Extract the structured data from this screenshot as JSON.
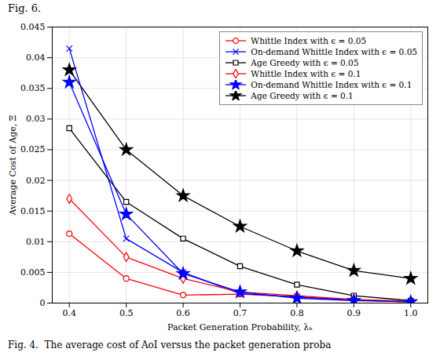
{
  "chart_data": {
    "type": "line",
    "title": "Fig. 6.",
    "caption": "Fig. 4.  The average cost of AoI versus the packet generation proba",
    "xlabel": "Packet Generation Probability, λₕ",
    "ylabel": "Average Cost of Age, Ξ",
    "x": [
      0.4,
      0.5,
      0.6,
      0.7,
      0.8,
      0.9,
      1.0
    ],
    "series": [
      {
        "name": "Whittle Index with ϵ = 0.05",
        "color": "#ff0000",
        "marker": "circle",
        "values": [
          0.0113,
          0.004,
          0.0013,
          0.00145,
          0.001,
          0.0005,
          0.0002
        ]
      },
      {
        "name": "On-demand Whittle Index with ϵ = 0.05",
        "color": "#0000ff",
        "marker": "x",
        "values": [
          0.0415,
          0.0105,
          0.005,
          0.00155,
          0.001,
          0.0005,
          0.0002
        ]
      },
      {
        "name": "Age Greedy with ϵ = 0.05",
        "color": "#000000",
        "marker": "square",
        "values": [
          0.0285,
          0.0165,
          0.0105,
          0.006,
          0.003,
          0.0012,
          0.0004
        ]
      },
      {
        "name": "Whittle Index with ϵ = 0.1",
        "color": "#ff0000",
        "marker": "diamond",
        "values": [
          0.017,
          0.0075,
          0.004,
          0.0018,
          0.0012,
          0.0006,
          0.0003
        ]
      },
      {
        "name": "On-demand Whittle Index with ϵ = 0.1",
        "color": "#0000ff",
        "marker": "star",
        "values": [
          0.036,
          0.0145,
          0.0048,
          0.0018,
          0.0008,
          0.0004,
          0.0002
        ]
      },
      {
        "name": "Age Greedy with ϵ = 0.1",
        "color": "#000000",
        "marker": "star",
        "values": [
          0.038,
          0.025,
          0.0175,
          0.0125,
          0.0085,
          0.0053,
          0.004
        ]
      }
    ],
    "xlim": [
      0.37,
      1.03
    ],
    "ylim": [
      0,
      0.045
    ],
    "xticks": [
      0.4,
      0.5,
      0.6,
      0.7,
      0.8,
      0.9,
      {
        "value": 1.0,
        "label": "1.0"
      }
    ],
    "yticks": [
      0,
      0.005,
      0.01,
      0.015,
      0.02,
      0.025,
      0.03,
      0.035,
      0.04,
      0.045
    ],
    "grid": true,
    "legend": "upper right"
  }
}
